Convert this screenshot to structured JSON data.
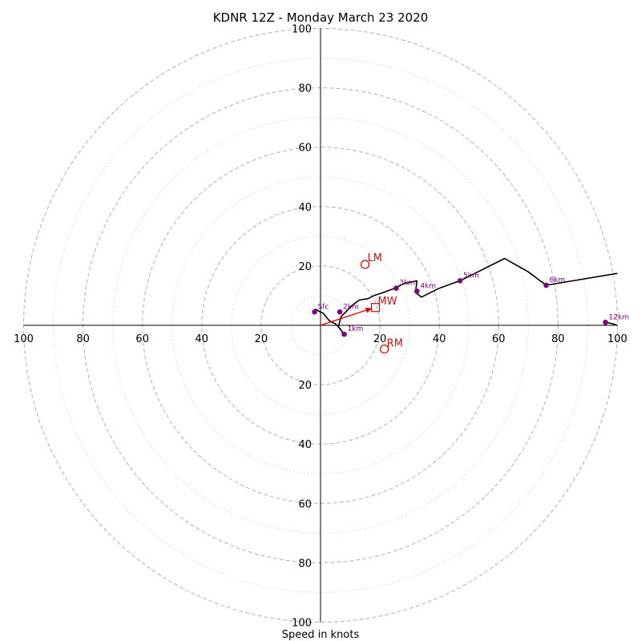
{
  "chart_data": {
    "type": "hodograph",
    "title": "KDNR 12Z - Monday March 23 2020",
    "xlabel": "Speed in knots",
    "range": [
      -100,
      100
    ],
    "rings_major": [
      20,
      40,
      60,
      80,
      100
    ],
    "rings_minor": [
      10,
      30,
      50,
      70,
      90
    ],
    "x_tick_labels": [
      "100",
      "80",
      "60",
      "40",
      "20",
      "20",
      "40",
      "60",
      "80",
      "100"
    ],
    "x_tick_values": [
      -100,
      -80,
      -60,
      -40,
      -20,
      20,
      40,
      60,
      80,
      100
    ],
    "y_tick_labels": [
      "100",
      "80",
      "60",
      "40",
      "20",
      "20",
      "40",
      "60",
      "80",
      "100"
    ],
    "y_tick_values": [
      100,
      80,
      60,
      40,
      20,
      -20,
      -40,
      -60,
      -80,
      -100
    ],
    "hodograph_line": [
      [
        -2,
        5.5
      ],
      [
        1,
        4
      ],
      [
        3,
        1.5
      ],
      [
        5,
        0.5
      ],
      [
        6.5,
        -1
      ],
      [
        7.5,
        -2.5
      ],
      [
        8,
        -3
      ],
      [
        6,
        -0.5
      ],
      [
        7,
        3
      ],
      [
        9,
        5
      ],
      [
        11,
        7
      ],
      [
        13,
        8.5
      ],
      [
        16,
        9
      ],
      [
        18,
        10
      ],
      [
        21,
        11
      ],
      [
        25,
        12.5
      ],
      [
        28,
        14
      ],
      [
        32.5,
        15
      ],
      [
        32,
        11
      ],
      [
        34,
        9.5
      ],
      [
        40,
        12.5
      ],
      [
        47,
        15
      ],
      [
        53,
        18
      ],
      [
        57,
        20
      ],
      [
        62,
        22.5
      ],
      [
        70,
        18
      ],
      [
        76,
        13.5
      ],
      [
        100,
        17.5
      ]
    ],
    "hodograph_tail": [
      [
        96,
        1
      ],
      [
        98.5,
        0.5
      ],
      [
        100,
        0
      ]
    ],
    "height_markers": [
      {
        "label": "Sfc",
        "u": -2,
        "v": 4.5
      },
      {
        "label": "1km",
        "u": 8,
        "v": -3
      },
      {
        "label": "2km",
        "u": 6.5,
        "v": 4.5
      },
      {
        "label": "3km",
        "u": 25.5,
        "v": 12.5
      },
      {
        "label": "4km",
        "u": 32.5,
        "v": 11.5
      },
      {
        "label": "5km",
        "u": 47,
        "v": 15
      },
      {
        "label": "6km",
        "u": 76,
        "v": 13.5
      },
      {
        "label": "12km",
        "u": 96,
        "v": 1
      }
    ],
    "storm_motions": {
      "LM": {
        "label": "LM",
        "u": 15,
        "v": 20.5
      },
      "RM": {
        "label": "RM",
        "u": 21.5,
        "v": -8
      },
      "MW": {
        "label": "MW",
        "u": 18.5,
        "v": 6
      }
    },
    "colors": {
      "hodograph": "#000000",
      "markers": "#800080",
      "motion": "#cc1111",
      "arrow": "#e00000",
      "grid": "#b0b0b0",
      "axis": "#000000"
    }
  }
}
